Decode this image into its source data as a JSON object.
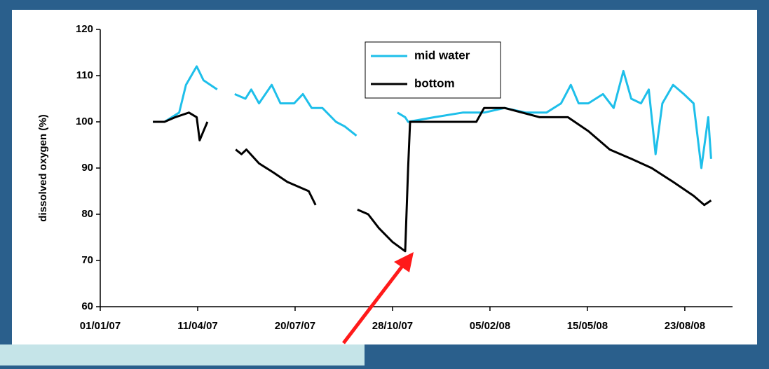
{
  "chart_data": {
    "type": "line",
    "y_label": "dissolved oxygen  (%)",
    "ylim": [
      60,
      120
    ],
    "yticks": [
      60,
      70,
      80,
      90,
      100,
      110,
      120
    ],
    "xlim": [
      "01/01/07",
      "11/10/08"
    ],
    "xticks": [
      "01/01/07",
      "11/04/07",
      "20/07/07",
      "28/10/07",
      "05/02/08",
      "15/05/08",
      "23/08/08"
    ],
    "legend": "top-center",
    "series": [
      {
        "name": "mid water",
        "color": "#1ebfea",
        "x": [
          "24/02/07",
          "08/03/07",
          "23/03/07",
          "30/03/07",
          "10/04/07",
          "17/04/07",
          "24/04/07",
          "01/05/07",
          null,
          "19/05/07",
          "30/05/07",
          "05/06/07",
          "13/06/07",
          "26/06/07",
          "05/07/07",
          "19/07/07",
          "28/07/07",
          "06/08/07",
          "17/08/07",
          "31/08/07",
          "09/09/07",
          "21/09/07",
          null,
          "02/11/07",
          "10/11/07",
          "13/11/07",
          "10/12/07",
          "08/01/08",
          "30/01/08",
          "20/02/08",
          "13/03/08",
          "03/04/08",
          "18/04/08",
          "28/04/08",
          "06/05/08",
          "16/05/08",
          "31/05/08",
          "11/06/08",
          "21/06/08",
          "29/06/08",
          "09/07/08",
          "17/07/08",
          "24/07/08",
          "31/07/08",
          "11/08/08",
          "22/08/08",
          "01/09/08",
          "09/09/08",
          "16/09/08",
          "19/09/08"
        ],
        "values": [
          100,
          100,
          102,
          108,
          112,
          109,
          108,
          107,
          null,
          106,
          105,
          107,
          104,
          108,
          104,
          104,
          106,
          103,
          103,
          100,
          99,
          97,
          null,
          102,
          101,
          100,
          101,
          102,
          102,
          103,
          102,
          102,
          104,
          108,
          104,
          104,
          106,
          103,
          111,
          105,
          104,
          107,
          93,
          104,
          108,
          106,
          104,
          90,
          101,
          92
        ]
      },
      {
        "name": "bottom",
        "color": "#000000",
        "x": [
          "24/02/07",
          "08/03/07",
          "19/03/07",
          "02/04/07",
          "10/04/07",
          "13/04/07",
          "17/04/07",
          "21/04/07",
          null,
          "20/05/07",
          "26/05/07",
          "31/05/07",
          "13/06/07",
          "28/06/07",
          "12/07/07",
          "23/07/07",
          "03/08/07",
          "10/08/07",
          null,
          "22/09/07",
          "03/10/07",
          "14/10/07",
          "28/10/07",
          "10/11/07",
          "13/11/07",
          "15/11/07",
          "26/11/07",
          "01/01/08",
          "22/01/08",
          "30/01/08",
          "20/02/08",
          "27/03/08",
          "25/04/08",
          "16/05/08",
          "07/06/08",
          "29/06/08",
          "20/07/08",
          "11/08/08",
          "01/09/08",
          "12/09/08",
          "19/09/08"
        ],
        "values": [
          100,
          100,
          101,
          102,
          101,
          96,
          98,
          100,
          null,
          94,
          93,
          94,
          91,
          89,
          87,
          86,
          85,
          82,
          null,
          81,
          80,
          77,
          74,
          72,
          90,
          100,
          100,
          100,
          100,
          103,
          103,
          101,
          101,
          98,
          94,
          92,
          90,
          87,
          84,
          82,
          83
        ]
      }
    ]
  }
}
